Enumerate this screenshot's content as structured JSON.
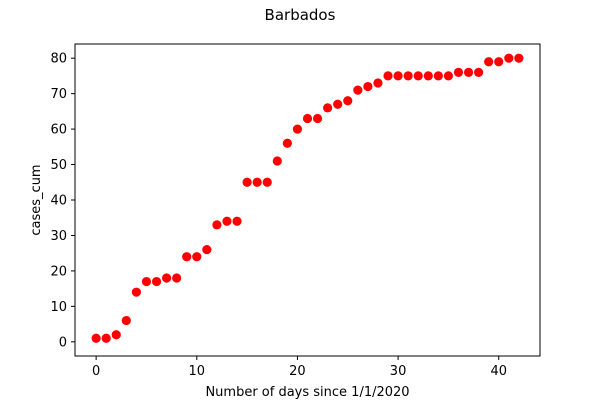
{
  "chart_data": {
    "type": "scatter",
    "title": "Barbados",
    "xlabel": "Number of days since 1/1/2020",
    "ylabel": "cases_cum",
    "xlim": [
      -2.1,
      44.1
    ],
    "ylim": [
      -4.0,
      84.0
    ],
    "xticks": [
      0,
      10,
      20,
      30,
      40
    ],
    "yticks": [
      0,
      10,
      20,
      30,
      40,
      50,
      60,
      70,
      80
    ],
    "grid": false,
    "marker_color": "#ff0000",
    "series": [
      {
        "x": [
          0,
          1,
          2,
          3,
          4,
          5,
          6,
          7,
          8,
          9,
          10,
          11,
          12,
          13,
          14,
          15,
          16,
          17,
          18,
          19,
          20,
          21,
          22,
          23,
          24,
          25,
          26,
          27,
          28,
          29,
          30,
          31,
          32,
          33,
          34,
          35,
          36,
          37,
          38,
          39,
          40,
          41,
          42
        ],
        "y": [
          1,
          1,
          2,
          6,
          14,
          17,
          17,
          18,
          18,
          24,
          24,
          26,
          33,
          34,
          34,
          45,
          45,
          45,
          51,
          56,
          60,
          63,
          63,
          66,
          67,
          68,
          71,
          72,
          73,
          75,
          75,
          75,
          75,
          75,
          75,
          75,
          76,
          76,
          76,
          79,
          79,
          80,
          80
        ]
      }
    ]
  }
}
